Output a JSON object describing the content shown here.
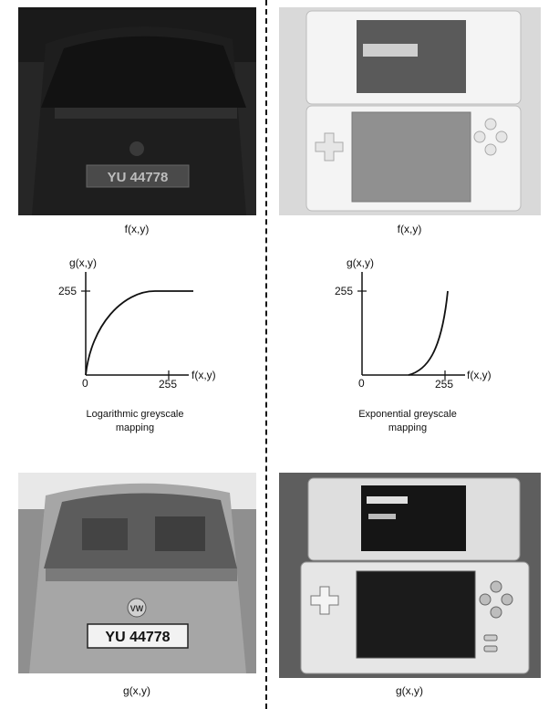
{
  "top_left": {
    "caption": "f(x,y)",
    "plate": "YU 44778"
  },
  "top_right": {
    "caption": "f(x,y)"
  },
  "bottom_left": {
    "caption": "g(x,y)",
    "plate": "YU 44778",
    "badge": "VW"
  },
  "bottom_right": {
    "caption": "g(x,y)"
  },
  "log_graph": {
    "y_label": "g(x,y)",
    "x_label": "f(x,y)",
    "y_tick": "255",
    "x_tick": "255",
    "origin": "0",
    "caption_line1": "Logarithmic greyscale",
    "caption_line2": "mapping"
  },
  "exp_graph": {
    "y_label": "g(x,y)",
    "x_label": "f(x,y)",
    "y_tick": "255",
    "x_tick": "255",
    "origin": "0",
    "caption_line1": "Exponential greyscale",
    "caption_line2": "mapping"
  }
}
